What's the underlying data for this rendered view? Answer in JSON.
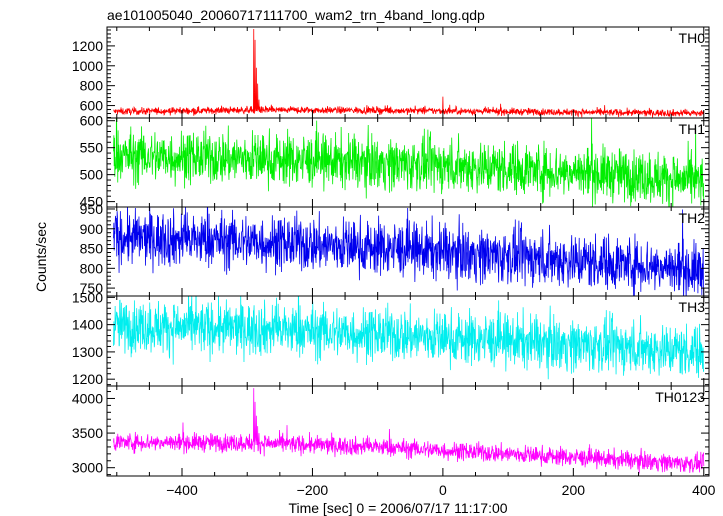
{
  "chart_data": {
    "type": "line",
    "title": "ae101005040_20060717111700_wam2_trn_4band_long.qdp",
    "xlabel": "Time [sec] 0 = 2006/07/17 11:17:00",
    "ylabel": "Counts/sec",
    "xlim": [
      -515,
      408
    ],
    "xticks": [
      -400,
      -200,
      0,
      200,
      400
    ],
    "grid": false,
    "panels": [
      {
        "label": "TH0",
        "color": "#ff0000",
        "ylim": [
          475,
          1390
        ],
        "yticks": [
          600,
          800,
          1000,
          1200
        ],
        "baseline": [
          [
            -505,
            540
          ],
          [
            -300,
            555
          ],
          [
            -100,
            552
          ],
          [
            100,
            540
          ],
          [
            300,
            528
          ],
          [
            400,
            522
          ]
        ],
        "noise": 35,
        "spikes": [
          {
            "x": -290,
            "y": 1370
          },
          {
            "x": -288,
            "y": 1260
          },
          {
            "x": -286,
            "y": 980
          },
          {
            "x": -284,
            "y": 820
          },
          {
            "x": -282,
            "y": 660
          },
          {
            "x": 0,
            "y": 690
          }
        ]
      },
      {
        "label": "TH1",
        "color": "#00ee00",
        "ylim": [
          440,
          605
        ],
        "yticks": [
          450,
          500,
          550,
          600
        ],
        "baseline": [
          [
            -505,
            535
          ],
          [
            -300,
            530
          ],
          [
            -100,
            522
          ],
          [
            100,
            512
          ],
          [
            300,
            498
          ],
          [
            400,
            486
          ]
        ],
        "noise": 48,
        "spikes": []
      },
      {
        "label": "TH2",
        "color": "#0000ee",
        "ylim": [
          730,
          955
        ],
        "yticks": [
          750,
          800,
          850,
          900,
          950
        ],
        "baseline": [
          [
            -505,
            878
          ],
          [
            -300,
            868
          ],
          [
            -100,
            852
          ],
          [
            100,
            830
          ],
          [
            300,
            810
          ],
          [
            400,
            792
          ]
        ],
        "noise": 68,
        "spikes": []
      },
      {
        "label": "TH3",
        "color": "#00eeee",
        "ylim": [
          1175,
          1505
        ],
        "yticks": [
          1200,
          1300,
          1400,
          1500
        ],
        "baseline": [
          [
            -505,
            1395
          ],
          [
            -300,
            1385
          ],
          [
            -100,
            1365
          ],
          [
            100,
            1340
          ],
          [
            300,
            1315
          ],
          [
            400,
            1300
          ]
        ],
        "noise": 95,
        "spikes": []
      },
      {
        "label": "TH0123",
        "color": "#ff00ff",
        "ylim": [
          2880,
          4180
        ],
        "yticks": [
          3000,
          3500,
          4000
        ],
        "baseline": [
          [
            -505,
            3370
          ],
          [
            -300,
            3360
          ],
          [
            -100,
            3300
          ],
          [
            100,
            3200
          ],
          [
            300,
            3100
          ],
          [
            400,
            3050
          ]
        ],
        "noise": 130,
        "spikes": [
          {
            "x": -290,
            "y": 4150
          },
          {
            "x": -288,
            "y": 3950
          },
          {
            "x": -286,
            "y": 3750
          },
          {
            "x": -284,
            "y": 3600
          },
          {
            "x": -282,
            "y": 3500
          }
        ]
      }
    ]
  }
}
